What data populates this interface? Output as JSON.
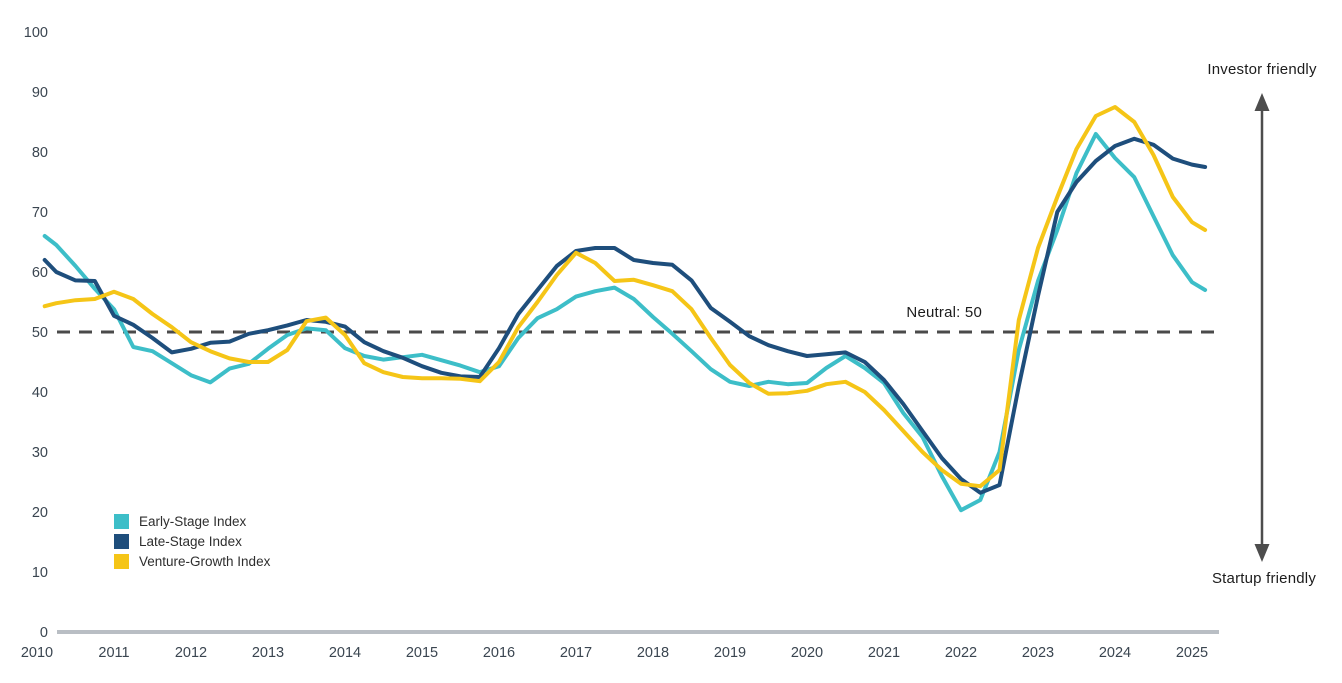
{
  "chart_data": {
    "type": "line",
    "title": "",
    "x_axis": {
      "ticks": [
        "2010",
        "2011",
        "2012",
        "2013",
        "2014",
        "2015",
        "2016",
        "2017",
        "2018",
        "2019",
        "2020",
        "2021",
        "2022",
        "2023",
        "2024",
        "2025"
      ],
      "range": [
        2010,
        2025.4
      ]
    },
    "y_axis": {
      "ticks": [
        0,
        10,
        20,
        30,
        40,
        50,
        60,
        70,
        80,
        90,
        100
      ],
      "range": [
        0,
        100
      ]
    },
    "reference_line": {
      "label": "Neutral: 50",
      "value": 50
    },
    "annotations": {
      "investor": "Investor friendly",
      "startup": "Startup friendly"
    },
    "legend_position": "bottom-left",
    "grid": false,
    "series": [
      {
        "name": "Early-Stage Index",
        "color": "#3dbec8",
        "points": [
          [
            2010.1,
            66
          ],
          [
            2010.25,
            64.5
          ],
          [
            2010.5,
            61
          ],
          [
            2010.75,
            57.2
          ],
          [
            2011.0,
            53.8
          ],
          [
            2011.25,
            47.5
          ],
          [
            2011.5,
            46.8
          ],
          [
            2011.75,
            44.8
          ],
          [
            2012.0,
            42.8
          ],
          [
            2012.25,
            41.6
          ],
          [
            2012.5,
            43.9
          ],
          [
            2012.75,
            44.7
          ],
          [
            2013.0,
            47.2
          ],
          [
            2013.25,
            49.5
          ],
          [
            2013.5,
            50.6
          ],
          [
            2013.75,
            50.3
          ],
          [
            2014.0,
            47.3
          ],
          [
            2014.25,
            46
          ],
          [
            2014.5,
            45.4
          ],
          [
            2014.75,
            45.8
          ],
          [
            2015.0,
            46.2
          ],
          [
            2015.25,
            45.3
          ],
          [
            2015.5,
            44.4
          ],
          [
            2015.75,
            43.3
          ],
          [
            2016.0,
            44.3
          ],
          [
            2016.25,
            49
          ],
          [
            2016.5,
            52.3
          ],
          [
            2016.75,
            53.8
          ],
          [
            2017.0,
            55.9
          ],
          [
            2017.25,
            56.8
          ],
          [
            2017.5,
            57.4
          ],
          [
            2017.75,
            55.5
          ],
          [
            2018.0,
            52.5
          ],
          [
            2018.25,
            49.7
          ],
          [
            2018.5,
            46.8
          ],
          [
            2018.75,
            43.8
          ],
          [
            2019.0,
            41.7
          ],
          [
            2019.25,
            41
          ],
          [
            2019.5,
            41.7
          ],
          [
            2019.75,
            41.3
          ],
          [
            2020.0,
            41.5
          ],
          [
            2020.25,
            44
          ],
          [
            2020.5,
            46
          ],
          [
            2020.75,
            44
          ],
          [
            2021.0,
            41.5
          ],
          [
            2021.25,
            36.5
          ],
          [
            2021.5,
            32.5
          ],
          [
            2021.75,
            26
          ],
          [
            2022.0,
            20.3
          ],
          [
            2022.25,
            22
          ],
          [
            2022.5,
            30
          ],
          [
            2022.75,
            47
          ],
          [
            2023.0,
            58.5
          ],
          [
            2023.25,
            67
          ],
          [
            2023.5,
            76.5
          ],
          [
            2023.75,
            83
          ],
          [
            2024.0,
            79
          ],
          [
            2024.25,
            75.8
          ],
          [
            2024.5,
            69.3
          ],
          [
            2024.75,
            62.8
          ],
          [
            2025.0,
            58.3
          ],
          [
            2025.17,
            57
          ]
        ]
      },
      {
        "name": "Late-Stage Index",
        "color": "#1e4e7c",
        "points": [
          [
            2010.1,
            62
          ],
          [
            2010.25,
            60
          ],
          [
            2010.5,
            58.6
          ],
          [
            2010.75,
            58.5
          ],
          [
            2011.0,
            52.7
          ],
          [
            2011.25,
            51.2
          ],
          [
            2011.5,
            49
          ],
          [
            2011.75,
            46.6
          ],
          [
            2012.0,
            47.2
          ],
          [
            2012.25,
            48.2
          ],
          [
            2012.5,
            48.4
          ],
          [
            2012.75,
            49.7
          ],
          [
            2013.0,
            50.3
          ],
          [
            2013.25,
            51.1
          ],
          [
            2013.5,
            52
          ],
          [
            2013.75,
            51.7
          ],
          [
            2014.0,
            50.9
          ],
          [
            2014.25,
            48.3
          ],
          [
            2014.5,
            46.8
          ],
          [
            2014.75,
            45.7
          ],
          [
            2015.0,
            44.3
          ],
          [
            2015.25,
            43.2
          ],
          [
            2015.5,
            42.6
          ],
          [
            2015.75,
            42.5
          ],
          [
            2016.0,
            47.3
          ],
          [
            2016.25,
            53
          ],
          [
            2016.5,
            57
          ],
          [
            2016.75,
            61
          ],
          [
            2017.0,
            63.5
          ],
          [
            2017.25,
            64
          ],
          [
            2017.5,
            64
          ],
          [
            2017.75,
            62
          ],
          [
            2018.0,
            61.5
          ],
          [
            2018.25,
            61.2
          ],
          [
            2018.5,
            58.6
          ],
          [
            2018.75,
            54
          ],
          [
            2019.0,
            51.7
          ],
          [
            2019.25,
            49.3
          ],
          [
            2019.5,
            47.8
          ],
          [
            2019.75,
            46.8
          ],
          [
            2020.0,
            46
          ],
          [
            2020.25,
            46.3
          ],
          [
            2020.5,
            46.6
          ],
          [
            2020.75,
            45
          ],
          [
            2021.0,
            42
          ],
          [
            2021.25,
            38
          ],
          [
            2021.5,
            33.5
          ],
          [
            2021.75,
            29
          ],
          [
            2022.0,
            25.5
          ],
          [
            2022.25,
            23.2
          ],
          [
            2022.5,
            24.5
          ],
          [
            2022.75,
            41
          ],
          [
            2023.0,
            56
          ],
          [
            2023.25,
            70
          ],
          [
            2023.5,
            75
          ],
          [
            2023.75,
            78.5
          ],
          [
            2024.0,
            81
          ],
          [
            2024.25,
            82.2
          ],
          [
            2024.5,
            81.2
          ],
          [
            2024.75,
            78.9
          ],
          [
            2025.0,
            77.9
          ],
          [
            2025.17,
            77.5
          ]
        ]
      },
      {
        "name": "Venture-Growth Index",
        "color": "#f5c517",
        "points": [
          [
            2010.1,
            54.3
          ],
          [
            2010.25,
            54.8
          ],
          [
            2010.5,
            55.3
          ],
          [
            2010.75,
            55.5
          ],
          [
            2011.0,
            56.7
          ],
          [
            2011.25,
            55.5
          ],
          [
            2011.5,
            53
          ],
          [
            2011.75,
            50.8
          ],
          [
            2012.0,
            48.3
          ],
          [
            2012.25,
            46.8
          ],
          [
            2012.5,
            45.6
          ],
          [
            2012.75,
            45
          ],
          [
            2013.0,
            45
          ],
          [
            2013.25,
            47
          ],
          [
            2013.5,
            51.8
          ],
          [
            2013.75,
            52.4
          ],
          [
            2014.0,
            49.5
          ],
          [
            2014.25,
            44.8
          ],
          [
            2014.5,
            43.3
          ],
          [
            2014.75,
            42.5
          ],
          [
            2015.0,
            42.3
          ],
          [
            2015.25,
            42.3
          ],
          [
            2015.5,
            42.2
          ],
          [
            2015.75,
            41.8
          ],
          [
            2016.0,
            45
          ],
          [
            2016.25,
            50.8
          ],
          [
            2016.5,
            55
          ],
          [
            2016.75,
            59.5
          ],
          [
            2017.0,
            63.2
          ],
          [
            2017.25,
            61.5
          ],
          [
            2017.5,
            58.5
          ],
          [
            2017.75,
            58.7
          ],
          [
            2018.0,
            57.8
          ],
          [
            2018.25,
            56.8
          ],
          [
            2018.5,
            53.8
          ],
          [
            2018.75,
            49
          ],
          [
            2019.0,
            44.5
          ],
          [
            2019.25,
            41.5
          ],
          [
            2019.5,
            39.7
          ],
          [
            2019.75,
            39.8
          ],
          [
            2020.0,
            40.2
          ],
          [
            2020.25,
            41.3
          ],
          [
            2020.5,
            41.7
          ],
          [
            2020.75,
            40
          ],
          [
            2021.0,
            37
          ],
          [
            2021.25,
            33.5
          ],
          [
            2021.5,
            30
          ],
          [
            2021.75,
            27
          ],
          [
            2022.0,
            24.7
          ],
          [
            2022.25,
            24.3
          ],
          [
            2022.5,
            27
          ],
          [
            2022.75,
            52
          ],
          [
            2023.0,
            64
          ],
          [
            2023.25,
            72.5
          ],
          [
            2023.5,
            80.5
          ],
          [
            2023.75,
            86
          ],
          [
            2024.0,
            87.5
          ],
          [
            2024.25,
            85
          ],
          [
            2024.5,
            79.5
          ],
          [
            2024.75,
            72.5
          ],
          [
            2025.0,
            68.3
          ],
          [
            2025.17,
            67
          ]
        ]
      }
    ]
  },
  "legend": {
    "items": [
      {
        "label": "Early-Stage Index",
        "color": "#3dbec8"
      },
      {
        "label": "Late-Stage Index",
        "color": "#1e4e7c"
      },
      {
        "label": "Venture-Growth Index",
        "color": "#f5c517"
      }
    ]
  },
  "labels": {
    "neutral": "Neutral: 50",
    "investor": "Investor friendly",
    "startup": "Startup friendly"
  },
  "colors": {
    "teal": "#3dbec8",
    "navy": "#1e4e7c",
    "yellow": "#f5c517",
    "dashed_line": "#4a4a4a",
    "axis_text": "#3a4550",
    "baseline": "#b9bec4",
    "arrow": "#4d4d4d",
    "annotation_text": "#1c1c1c"
  }
}
